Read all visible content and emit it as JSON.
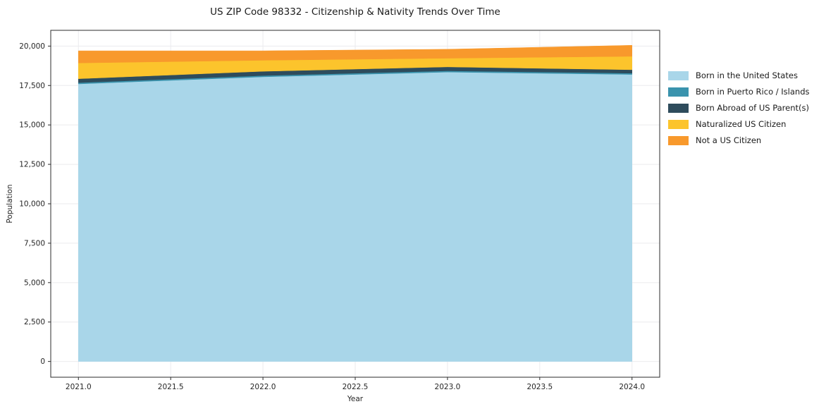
{
  "title": "US ZIP Code 98332 - Citizenship & Nativity Trends Over Time",
  "chart_data": {
    "type": "area",
    "stacked": true,
    "title": "US ZIP Code 98332 - Citizenship & Nativity Trends Over Time",
    "xlabel": "Year",
    "ylabel": "Population",
    "x": [
      2021,
      2022,
      2023,
      2024
    ],
    "series": [
      {
        "name": "Born in the United States",
        "color": "#a9d6e9",
        "values": [
          17600,
          18050,
          18350,
          18200
        ]
      },
      {
        "name": "Born in Puerto Rico / Islands",
        "color": "#3a93ad",
        "values": [
          80,
          80,
          80,
          80
        ]
      },
      {
        "name": "Born Abroad of US Parent(s)",
        "color": "#2e4c5c",
        "values": [
          250,
          270,
          250,
          220
        ]
      },
      {
        "name": "Naturalized US Citizen",
        "color": "#fcc42c",
        "values": [
          1000,
          700,
          550,
          850
        ]
      },
      {
        "name": "Not a US Citizen",
        "color": "#f8992c",
        "values": [
          770,
          600,
          570,
          700
        ]
      }
    ],
    "xlim": [
      2020.85,
      2024.15
    ],
    "ylim": [
      -1000,
      21000
    ],
    "xticks": {
      "values": [
        2021.0,
        2021.5,
        2022.0,
        2022.5,
        2023.0,
        2023.5,
        2024.0
      ],
      "labels": [
        "2021.0",
        "2021.5",
        "2022.0",
        "2022.5",
        "2023.0",
        "2023.5",
        "2024.0"
      ]
    },
    "yticks": {
      "values": [
        0,
        2500,
        5000,
        7500,
        10000,
        12500,
        15000,
        17500,
        20000
      ],
      "labels": [
        "0",
        "2,500",
        "5,000",
        "7,500",
        "10,000",
        "12,500",
        "15,000",
        "17,500",
        "20,000"
      ]
    },
    "grid": true,
    "legend_position": "right"
  }
}
